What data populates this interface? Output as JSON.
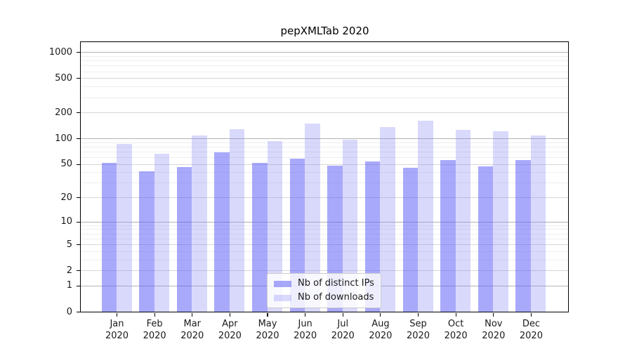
{
  "chart_data": {
    "type": "bar",
    "title": "pepXMLTab 2020",
    "x_categories_line1": [
      "Jan",
      "Feb",
      "Mar",
      "Apr",
      "May",
      "Jun",
      "Jul",
      "Aug",
      "Sep",
      "Oct",
      "Nov",
      "Dec"
    ],
    "x_categories_line2": "2020",
    "series": [
      {
        "name": "Nb of distinct IPs",
        "color": "#6363F78C",
        "values": [
          52,
          41,
          46,
          68,
          52,
          58,
          48,
          54,
          45,
          56,
          47,
          56
        ]
      },
      {
        "name": "Nb of downloads",
        "color": "#8C8CF554",
        "values": [
          86,
          66,
          109,
          127,
          93,
          149,
          97,
          135,
          161,
          126,
          122,
          109
        ]
      }
    ],
    "y_axis": {
      "scale": "log10(value+1), zero at baseline",
      "major_ticks": [
        0,
        1,
        2,
        5,
        10,
        20,
        50,
        100,
        200,
        500,
        1000
      ],
      "minor_gridlines": [
        3,
        4,
        6,
        7,
        8,
        9,
        30,
        40,
        60,
        70,
        80,
        90,
        300,
        400,
        600,
        700,
        800,
        900
      ],
      "top_value": 1300
    },
    "grid": true,
    "legend_position": "lower center",
    "colors": {
      "power10_gridline": "#b2b2b2",
      "major_gridline": "#d6d6d6",
      "minor_gridline": "#eeeeee",
      "spine": "#000000",
      "text": "#1a1a1a"
    }
  }
}
